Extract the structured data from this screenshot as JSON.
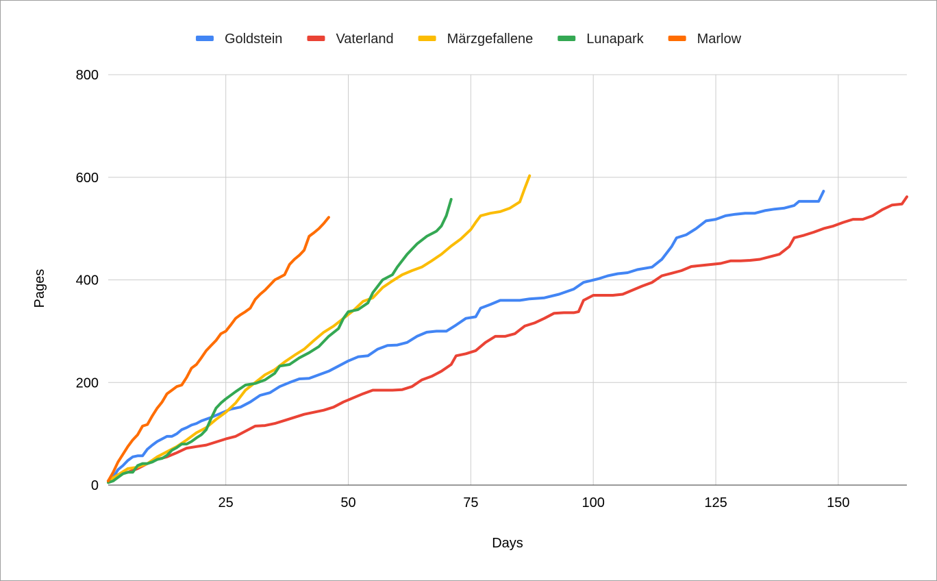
{
  "chart_data": {
    "type": "line",
    "title": "",
    "xlabel": "Days",
    "ylabel": "Pages",
    "xlim": [
      1,
      164
    ],
    "ylim": [
      0,
      800
    ],
    "x_ticks": [
      25,
      50,
      75,
      100,
      125,
      150
    ],
    "y_ticks": [
      0,
      200,
      400,
      600,
      800
    ],
    "grid": true,
    "legend_position": "top-center",
    "series": [
      {
        "name": "Goldstein",
        "color": "#4285f4",
        "points": [
          [
            1,
            8
          ],
          [
            2,
            15
          ],
          [
            3,
            30
          ],
          [
            4,
            38
          ],
          [
            5,
            48
          ],
          [
            6,
            55
          ],
          [
            7,
            57
          ],
          [
            8,
            57
          ],
          [
            9,
            70
          ],
          [
            10,
            78
          ],
          [
            11,
            85
          ],
          [
            12,
            90
          ],
          [
            13,
            95
          ],
          [
            14,
            95
          ],
          [
            15,
            100
          ],
          [
            16,
            108
          ],
          [
            17,
            112
          ],
          [
            18,
            117
          ],
          [
            19,
            120
          ],
          [
            20,
            125
          ],
          [
            22,
            132
          ],
          [
            24,
            140
          ],
          [
            26,
            148
          ],
          [
            28,
            152
          ],
          [
            30,
            162
          ],
          [
            32,
            175
          ],
          [
            34,
            180
          ],
          [
            36,
            192
          ],
          [
            38,
            200
          ],
          [
            40,
            207
          ],
          [
            42,
            208
          ],
          [
            44,
            215
          ],
          [
            46,
            222
          ],
          [
            48,
            232
          ],
          [
            50,
            242
          ],
          [
            52,
            250
          ],
          [
            54,
            252
          ],
          [
            56,
            265
          ],
          [
            58,
            272
          ],
          [
            60,
            273
          ],
          [
            62,
            278
          ],
          [
            64,
            290
          ],
          [
            66,
            298
          ],
          [
            68,
            300
          ],
          [
            70,
            300
          ],
          [
            72,
            312
          ],
          [
            74,
            325
          ],
          [
            76,
            328
          ],
          [
            77,
            345
          ],
          [
            79,
            352
          ],
          [
            81,
            360
          ],
          [
            83,
            360
          ],
          [
            85,
            360
          ],
          [
            87,
            363
          ],
          [
            90,
            365
          ],
          [
            93,
            372
          ],
          [
            96,
            382
          ],
          [
            98,
            395
          ],
          [
            101,
            402
          ],
          [
            103,
            408
          ],
          [
            105,
            412
          ],
          [
            107,
            414
          ],
          [
            109,
            420
          ],
          [
            112,
            425
          ],
          [
            114,
            440
          ],
          [
            116,
            465
          ],
          [
            117,
            482
          ],
          [
            119,
            488
          ],
          [
            121,
            500
          ],
          [
            123,
            515
          ],
          [
            125,
            518
          ],
          [
            127,
            525
          ],
          [
            129,
            528
          ],
          [
            131,
            530
          ],
          [
            133,
            530
          ],
          [
            135,
            535
          ],
          [
            137,
            538
          ],
          [
            139,
            540
          ],
          [
            141,
            545
          ],
          [
            142,
            553
          ],
          [
            144,
            553
          ],
          [
            146,
            553
          ],
          [
            147,
            573
          ]
        ]
      },
      {
        "name": "Vaterland",
        "color": "#ea4335",
        "points": [
          [
            1,
            8
          ],
          [
            3,
            20
          ],
          [
            5,
            25
          ],
          [
            7,
            32
          ],
          [
            9,
            42
          ],
          [
            11,
            50
          ],
          [
            13,
            55
          ],
          [
            15,
            63
          ],
          [
            17,
            72
          ],
          [
            19,
            75
          ],
          [
            21,
            78
          ],
          [
            23,
            84
          ],
          [
            25,
            90
          ],
          [
            27,
            95
          ],
          [
            29,
            105
          ],
          [
            31,
            115
          ],
          [
            33,
            116
          ],
          [
            35,
            120
          ],
          [
            37,
            126
          ],
          [
            39,
            132
          ],
          [
            41,
            138
          ],
          [
            43,
            142
          ],
          [
            45,
            146
          ],
          [
            47,
            152
          ],
          [
            49,
            162
          ],
          [
            51,
            170
          ],
          [
            53,
            178
          ],
          [
            55,
            185
          ],
          [
            57,
            185
          ],
          [
            59,
            185
          ],
          [
            61,
            186
          ],
          [
            63,
            192
          ],
          [
            65,
            205
          ],
          [
            67,
            212
          ],
          [
            69,
            222
          ],
          [
            71,
            235
          ],
          [
            72,
            252
          ],
          [
            74,
            256
          ],
          [
            76,
            262
          ],
          [
            78,
            278
          ],
          [
            80,
            290
          ],
          [
            82,
            290
          ],
          [
            84,
            295
          ],
          [
            86,
            310
          ],
          [
            88,
            316
          ],
          [
            90,
            325
          ],
          [
            92,
            335
          ],
          [
            94,
            336
          ],
          [
            96,
            336
          ],
          [
            97,
            338
          ],
          [
            98,
            360
          ],
          [
            100,
            370
          ],
          [
            102,
            370
          ],
          [
            104,
            370
          ],
          [
            106,
            372
          ],
          [
            108,
            380
          ],
          [
            110,
            388
          ],
          [
            112,
            395
          ],
          [
            114,
            408
          ],
          [
            116,
            413
          ],
          [
            118,
            418
          ],
          [
            120,
            426
          ],
          [
            122,
            428
          ],
          [
            124,
            430
          ],
          [
            126,
            432
          ],
          [
            128,
            437
          ],
          [
            130,
            437
          ],
          [
            132,
            438
          ],
          [
            134,
            440
          ],
          [
            136,
            445
          ],
          [
            138,
            450
          ],
          [
            140,
            465
          ],
          [
            141,
            482
          ],
          [
            143,
            487
          ],
          [
            145,
            493
          ],
          [
            147,
            500
          ],
          [
            149,
            505
          ],
          [
            151,
            512
          ],
          [
            153,
            518
          ],
          [
            155,
            518
          ],
          [
            157,
            525
          ],
          [
            159,
            537
          ],
          [
            161,
            546
          ],
          [
            163,
            548
          ],
          [
            164,
            562
          ]
        ]
      },
      {
        "name": "Märzgefallene",
        "color": "#fbbc04",
        "points": [
          [
            1,
            8
          ],
          [
            3,
            20
          ],
          [
            5,
            32
          ],
          [
            7,
            35
          ],
          [
            9,
            42
          ],
          [
            11,
            55
          ],
          [
            13,
            65
          ],
          [
            15,
            75
          ],
          [
            17,
            88
          ],
          [
            19,
            102
          ],
          [
            21,
            112
          ],
          [
            23,
            128
          ],
          [
            25,
            142
          ],
          [
            27,
            160
          ],
          [
            29,
            185
          ],
          [
            31,
            200
          ],
          [
            33,
            215
          ],
          [
            35,
            225
          ],
          [
            37,
            240
          ],
          [
            39,
            253
          ],
          [
            41,
            265
          ],
          [
            43,
            282
          ],
          [
            45,
            298
          ],
          [
            47,
            310
          ],
          [
            49,
            325
          ],
          [
            51,
            340
          ],
          [
            53,
            358
          ],
          [
            55,
            365
          ],
          [
            57,
            385
          ],
          [
            59,
            398
          ],
          [
            61,
            410
          ],
          [
            63,
            418
          ],
          [
            65,
            425
          ],
          [
            67,
            437
          ],
          [
            69,
            450
          ],
          [
            71,
            466
          ],
          [
            73,
            480
          ],
          [
            75,
            498
          ],
          [
            76,
            512
          ],
          [
            77,
            525
          ],
          [
            79,
            530
          ],
          [
            81,
            533
          ],
          [
            83,
            540
          ],
          [
            85,
            552
          ],
          [
            86,
            578
          ],
          [
            87,
            603
          ]
        ]
      },
      {
        "name": "Lunapark",
        "color": "#34a853",
        "points": [
          [
            1,
            5
          ],
          [
            2,
            8
          ],
          [
            3,
            15
          ],
          [
            4,
            22
          ],
          [
            5,
            25
          ],
          [
            6,
            25
          ],
          [
            7,
            38
          ],
          [
            8,
            42
          ],
          [
            9,
            42
          ],
          [
            10,
            45
          ],
          [
            11,
            50
          ],
          [
            12,
            52
          ],
          [
            13,
            58
          ],
          [
            14,
            68
          ],
          [
            15,
            73
          ],
          [
            16,
            80
          ],
          [
            17,
            80
          ],
          [
            18,
            85
          ],
          [
            19,
            92
          ],
          [
            20,
            98
          ],
          [
            21,
            108
          ],
          [
            22,
            130
          ],
          [
            23,
            150
          ],
          [
            24,
            160
          ],
          [
            25,
            168
          ],
          [
            27,
            182
          ],
          [
            29,
            195
          ],
          [
            31,
            198
          ],
          [
            33,
            205
          ],
          [
            35,
            218
          ],
          [
            36,
            232
          ],
          [
            38,
            235
          ],
          [
            40,
            248
          ],
          [
            42,
            258
          ],
          [
            44,
            270
          ],
          [
            46,
            290
          ],
          [
            48,
            305
          ],
          [
            49,
            325
          ],
          [
            50,
            338
          ],
          [
            52,
            342
          ],
          [
            54,
            355
          ],
          [
            55,
            375
          ],
          [
            57,
            400
          ],
          [
            59,
            410
          ],
          [
            60,
            425
          ],
          [
            62,
            450
          ],
          [
            64,
            470
          ],
          [
            66,
            485
          ],
          [
            68,
            495
          ],
          [
            69,
            505
          ],
          [
            70,
            525
          ],
          [
            71,
            557
          ]
        ]
      },
      {
        "name": "Marlow",
        "color": "#ff6d01",
        "points": [
          [
            1,
            8
          ],
          [
            2,
            25
          ],
          [
            3,
            45
          ],
          [
            4,
            60
          ],
          [
            5,
            75
          ],
          [
            6,
            88
          ],
          [
            7,
            98
          ],
          [
            8,
            115
          ],
          [
            9,
            118
          ],
          [
            10,
            135
          ],
          [
            11,
            150
          ],
          [
            12,
            162
          ],
          [
            13,
            178
          ],
          [
            14,
            185
          ],
          [
            15,
            192
          ],
          [
            16,
            195
          ],
          [
            17,
            210
          ],
          [
            18,
            228
          ],
          [
            19,
            235
          ],
          [
            20,
            248
          ],
          [
            21,
            262
          ],
          [
            22,
            272
          ],
          [
            23,
            282
          ],
          [
            24,
            295
          ],
          [
            25,
            300
          ],
          [
            26,
            312
          ],
          [
            27,
            325
          ],
          [
            28,
            332
          ],
          [
            29,
            338
          ],
          [
            30,
            345
          ],
          [
            31,
            362
          ],
          [
            32,
            372
          ],
          [
            33,
            380
          ],
          [
            34,
            390
          ],
          [
            35,
            400
          ],
          [
            36,
            405
          ],
          [
            37,
            410
          ],
          [
            38,
            430
          ],
          [
            39,
            440
          ],
          [
            40,
            448
          ],
          [
            41,
            458
          ],
          [
            42,
            485
          ],
          [
            43,
            492
          ],
          [
            44,
            500
          ],
          [
            45,
            510
          ],
          [
            46,
            522
          ]
        ]
      }
    ]
  }
}
